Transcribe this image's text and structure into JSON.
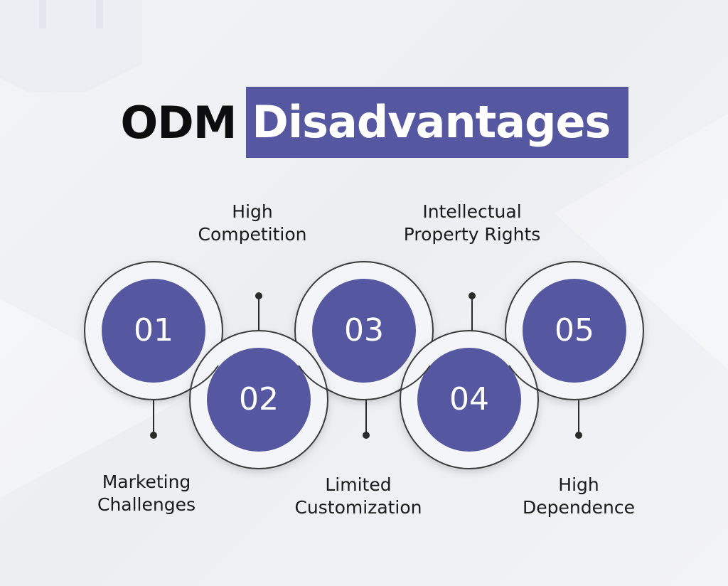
{
  "title": {
    "dark_part": "ODM",
    "highlight_part": "Disadvantages"
  },
  "colors": {
    "accent": "#5558a1",
    "text": "#1a1a1a",
    "ring": "#3a3a3a"
  },
  "steps": [
    {
      "number": "01",
      "label_line1": "Marketing",
      "label_line2": "Challenges",
      "label_position": "bottom"
    },
    {
      "number": "02",
      "label_line1": "High",
      "label_line2": "Competition",
      "label_position": "top"
    },
    {
      "number": "03",
      "label_line1": "Limited",
      "label_line2": "Customization",
      "label_position": "bottom"
    },
    {
      "number": "04",
      "label_line1": "Intellectual",
      "label_line2": "Property Rights",
      "label_position": "top"
    },
    {
      "number": "05",
      "label_line1": "High",
      "label_line2": "Dependence",
      "label_position": "bottom"
    }
  ]
}
